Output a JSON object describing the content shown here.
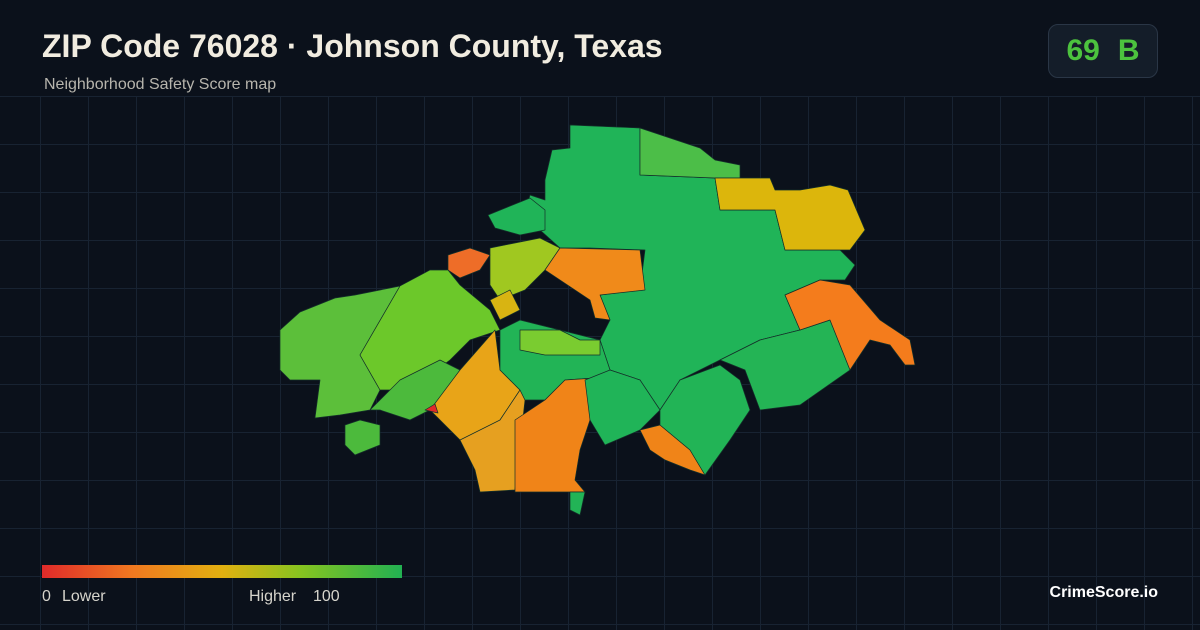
{
  "header": {
    "title": "ZIP Code 76028 · Johnson County, Texas",
    "subtitle": "Neighborhood Safety Score map"
  },
  "badge": {
    "score": 69,
    "grade": "B"
  },
  "legend": {
    "min": 0,
    "min_label": "Lower",
    "max_label": "Higher",
    "max": 100
  },
  "brand": "CrimeScore.io"
}
